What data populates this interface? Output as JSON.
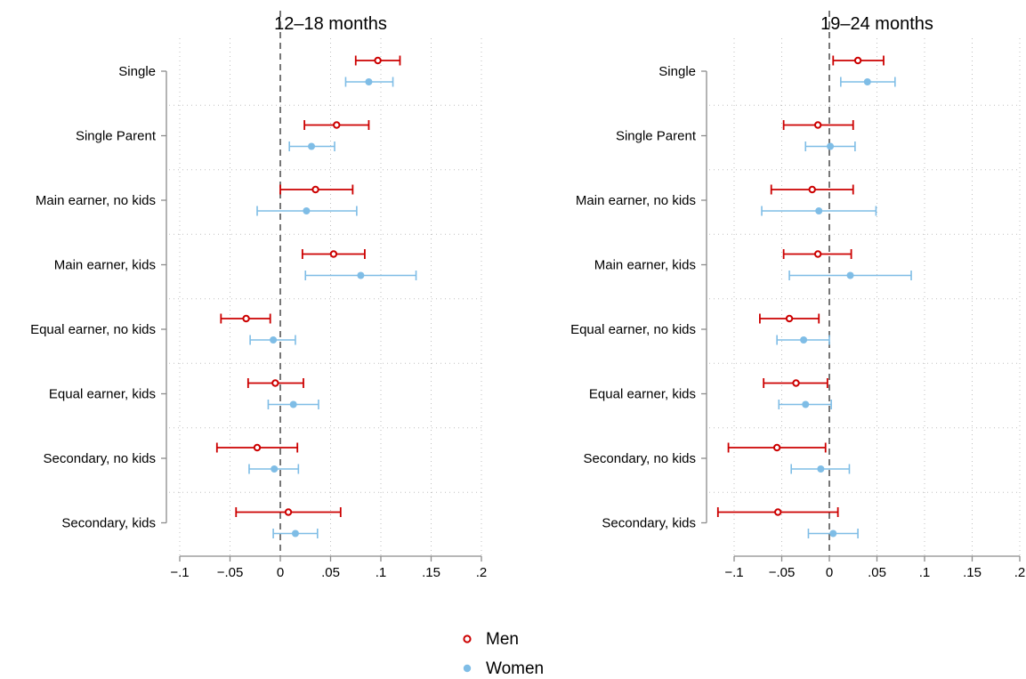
{
  "chart_data": [
    {
      "type": "scatter",
      "title": "12–18 months",
      "xlabel": "",
      "ylabel": "",
      "xlim": [
        -0.1,
        0.2
      ],
      "x_ticks": [
        -0.1,
        -0.05,
        0,
        0.05,
        0.1,
        0.15,
        0.2
      ],
      "x_tick_labels": [
        "−.1",
        "−.05",
        "0",
        ".05",
        ".1",
        ".15",
        ".2"
      ],
      "reference_line": 0,
      "categories": [
        "Single",
        "Single Parent",
        "Main earner, no kids",
        "Main earner, kids",
        "Equal earner, no kids",
        "Equal earner, kids",
        "Secondary, no kids",
        "Secondary, kids"
      ],
      "series": [
        {
          "name": "Men",
          "estimate": [
            0.097,
            0.056,
            0.035,
            0.053,
            -0.034,
            -0.005,
            -0.023,
            0.008
          ],
          "ci_low": [
            0.075,
            0.024,
            0.0,
            0.022,
            -0.059,
            -0.032,
            -0.063,
            -0.044
          ],
          "ci_high": [
            0.119,
            0.088,
            0.072,
            0.084,
            -0.01,
            0.023,
            0.017,
            0.06
          ]
        },
        {
          "name": "Women",
          "estimate": [
            0.088,
            0.031,
            0.026,
            0.08,
            -0.007,
            0.013,
            -0.006,
            0.015
          ],
          "ci_low": [
            0.065,
            0.009,
            -0.023,
            0.025,
            -0.03,
            -0.012,
            -0.031,
            -0.007
          ],
          "ci_high": [
            0.112,
            0.054,
            0.076,
            0.135,
            0.015,
            0.038,
            0.018,
            0.037
          ]
        }
      ]
    },
    {
      "type": "scatter",
      "title": "19–24 months",
      "xlabel": "",
      "ylabel": "",
      "xlim": [
        -0.1,
        0.2
      ],
      "x_ticks": [
        -0.1,
        -0.05,
        0,
        0.05,
        0.1,
        0.15,
        0.2
      ],
      "x_tick_labels": [
        "−.1",
        "−.05",
        "0",
        ".05",
        ".1",
        ".15",
        ".2"
      ],
      "reference_line": 0,
      "categories": [
        "Single",
        "Single Parent",
        "Main earner, no kids",
        "Main earner, kids",
        "Equal earner, no kids",
        "Equal earner, kids",
        "Secondary, no kids",
        "Secondary, kids"
      ],
      "series": [
        {
          "name": "Men",
          "estimate": [
            0.03,
            -0.012,
            -0.018,
            -0.012,
            -0.042,
            -0.035,
            -0.055,
            -0.054
          ],
          "ci_low": [
            0.004,
            -0.048,
            -0.061,
            -0.048,
            -0.073,
            -0.069,
            -0.106,
            -0.117
          ],
          "ci_high": [
            0.057,
            0.025,
            0.025,
            0.023,
            -0.011,
            -0.002,
            -0.004,
            0.009
          ]
        },
        {
          "name": "Women",
          "estimate": [
            0.04,
            0.001,
            -0.011,
            0.022,
            -0.027,
            -0.025,
            -0.009,
            0.004
          ],
          "ci_low": [
            0.012,
            -0.025,
            -0.071,
            -0.042,
            -0.055,
            -0.053,
            -0.04,
            -0.022
          ],
          "ci_high": [
            0.069,
            0.027,
            0.049,
            0.086,
            0.0,
            0.002,
            0.021,
            0.03
          ]
        }
      ]
    }
  ],
  "legend": {
    "position": "bottom-center",
    "items": [
      {
        "label": "Men",
        "color": "#cc0000",
        "marker": "hollow-circle"
      },
      {
        "label": "Women",
        "color": "#7fbde6",
        "marker": "filled-circle"
      }
    ]
  },
  "colors": {
    "men": "#cc0000",
    "women": "#7fbde6",
    "axis": "#8c8c8c",
    "grid": "#bfbfbf"
  }
}
